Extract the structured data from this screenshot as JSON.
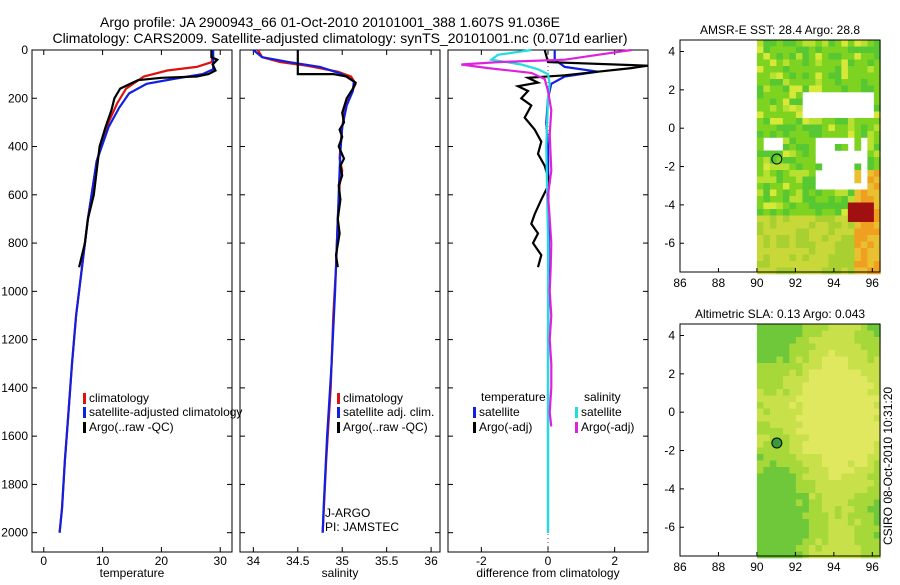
{
  "header": {
    "line1": "Argo profile: JA 2900943_66 01-Oct-2010 20101001_388 1.607S 91.036E",
    "line2": "Climatology: CARS2009. Satellite-adjusted climatology: synTS_20101001.nc (0.071d earlier)"
  },
  "colors": {
    "climatology": "#dd1111",
    "satellite": "#1020e0",
    "argo": "#000000",
    "salinity_sat": "#22dddd",
    "salinity_argo": "#dd22dd"
  },
  "depth_ticks": [
    "0",
    "200",
    "400",
    "600",
    "800",
    "1000",
    "1200",
    "1400",
    "1600",
    "1800",
    "2000"
  ],
  "chart_data": [
    {
      "id": "temperature",
      "type": "line",
      "xlabel": "temperature",
      "ylabel": "",
      "xlim": [
        -2,
        32
      ],
      "ylim": [
        2080,
        0
      ],
      "xticks": [
        {
          "v": 0,
          "label": "0"
        },
        {
          "v": 10,
          "label": "10"
        },
        {
          "v": 20,
          "label": "20"
        },
        {
          "v": 30,
          "label": "30"
        }
      ],
      "legend": [
        "climatology",
        "satellite-adjusted climatology",
        "Argo(..raw -QC)"
      ],
      "series": [
        {
          "name": "climatology",
          "color": "#dd1111",
          "points": [
            [
              28.6,
              0
            ],
            [
              28.6,
              50
            ],
            [
              26,
              70
            ],
            [
              21,
              85
            ],
            [
              17,
              110
            ],
            [
              14,
              160
            ],
            [
              12.5,
              220
            ],
            [
              11,
              300
            ],
            [
              9,
              460
            ],
            [
              7.5,
              700
            ],
            [
              6.5,
              900
            ],
            [
              5.5,
              1100
            ],
            [
              4.8,
              1300
            ],
            [
              4.2,
              1500
            ],
            [
              3.6,
              1700
            ],
            [
              3.1,
              1900
            ],
            [
              2.7,
              2000
            ]
          ]
        },
        {
          "name": "satellite",
          "color": "#1020e0",
          "points": [
            [
              28.8,
              0
            ],
            [
              28.8,
              80
            ],
            [
              27,
              100
            ],
            [
              22,
              120
            ],
            [
              17.5,
              140
            ],
            [
              14.5,
              180
            ],
            [
              12.8,
              240
            ],
            [
              11,
              320
            ],
            [
              9,
              460
            ],
            [
              7.5,
              700
            ],
            [
              6.5,
              900
            ],
            [
              5.5,
              1100
            ],
            [
              4.8,
              1300
            ],
            [
              4.2,
              1500
            ],
            [
              3.6,
              1700
            ],
            [
              3.1,
              1900
            ],
            [
              2.7,
              2000
            ]
          ]
        },
        {
          "name": "Argo",
          "color": "#000000",
          "points": [
            [
              28.5,
              0
            ],
            [
              28.5,
              30
            ],
            [
              29.5,
              40
            ],
            [
              28.7,
              60
            ],
            [
              29.2,
              85
            ],
            [
              28,
              100
            ],
            [
              26,
              110
            ],
            [
              20,
              115
            ],
            [
              16,
              125
            ],
            [
              13,
              160
            ],
            [
              12,
              200
            ],
            [
              11.5,
              250
            ],
            [
              10.5,
              320
            ],
            [
              9.5,
              400
            ],
            [
              9,
              500
            ],
            [
              8.5,
              600
            ],
            [
              7.5,
              700
            ],
            [
              7,
              800
            ],
            [
              6,
              900
            ]
          ]
        }
      ]
    },
    {
      "id": "salinity",
      "type": "line",
      "xlabel": "salinity",
      "xlim": [
        33.85,
        36.1
      ],
      "ylim": [
        2080,
        0
      ],
      "xticks": [
        {
          "v": 34,
          "label": "34"
        },
        {
          "v": 34.5,
          "label": "34.5"
        },
        {
          "v": 35,
          "label": "35"
        },
        {
          "v": 35.5,
          "label": "35.5"
        },
        {
          "v": 36,
          "label": "36"
        }
      ],
      "legend": [
        "climatology",
        "satellite adj. clim.",
        "Argo(..raw -QC)"
      ],
      "annotation": [
        "J-ARGO",
        "PI: JAMSTEC"
      ],
      "series": [
        {
          "name": "climatology",
          "color": "#dd1111",
          "points": [
            [
              34.05,
              0
            ],
            [
              34.1,
              30
            ],
            [
              34.3,
              50
            ],
            [
              34.6,
              65
            ],
            [
              34.95,
              90
            ],
            [
              35.1,
              110
            ],
            [
              35.15,
              140
            ],
            [
              35.1,
              180
            ],
            [
              35.03,
              240
            ],
            [
              35.0,
              320
            ],
            [
              34.98,
              400
            ],
            [
              34.97,
              450
            ],
            [
              35.0,
              500
            ],
            [
              34.97,
              560
            ],
            [
              34.95,
              700
            ],
            [
              34.93,
              900
            ],
            [
              34.9,
              1100
            ],
            [
              34.87,
              1400
            ],
            [
              34.82,
              1700
            ],
            [
              34.78,
              2000
            ]
          ]
        },
        {
          "name": "satellite",
          "color": "#1020e0",
          "points": [
            [
              34.0,
              0
            ],
            [
              34.1,
              30
            ],
            [
              34.4,
              50
            ],
            [
              34.75,
              70
            ],
            [
              35.0,
              100
            ],
            [
              35.13,
              130
            ],
            [
              35.12,
              170
            ],
            [
              35.05,
              230
            ],
            [
              35.0,
              320
            ],
            [
              34.98,
              420
            ],
            [
              34.97,
              500
            ],
            [
              34.96,
              600
            ],
            [
              34.94,
              800
            ],
            [
              34.92,
              1000
            ],
            [
              34.88,
              1300
            ],
            [
              34.83,
              1600
            ],
            [
              34.79,
              1900
            ],
            [
              34.78,
              2000
            ]
          ]
        },
        {
          "name": "Argo",
          "color": "#000000",
          "points": [
            [
              34.5,
              0
            ],
            [
              34.5,
              90
            ],
            [
              34.5,
              100
            ],
            [
              34.9,
              100
            ],
            [
              35.05,
              110
            ],
            [
              35.15,
              135
            ],
            [
              35.12,
              160
            ],
            [
              35.05,
              200
            ],
            [
              35.0,
              260
            ],
            [
              35.02,
              300
            ],
            [
              34.97,
              330
            ],
            [
              35.0,
              360
            ],
            [
              34.96,
              400
            ],
            [
              35.02,
              450
            ],
            [
              34.98,
              480
            ],
            [
              35.0,
              520
            ],
            [
              34.96,
              560
            ],
            [
              34.98,
              620
            ],
            [
              34.95,
              700
            ],
            [
              34.97,
              760
            ],
            [
              34.93,
              850
            ],
            [
              34.95,
              900
            ]
          ]
        }
      ]
    },
    {
      "id": "difference",
      "type": "line",
      "xlabel": "difference from climatology",
      "xlim": [
        -3,
        3
      ],
      "ylim": [
        2080,
        0
      ],
      "xticks": [
        {
          "v": -2,
          "label": "-2"
        },
        {
          "v": 0,
          "label": "0"
        },
        {
          "v": 2,
          "label": "2"
        }
      ],
      "legend_headers": [
        "temperature",
        "salinity"
      ],
      "legend": [
        "satellite",
        "Argo(-adj)",
        "satellite",
        "Argo(-adj)"
      ],
      "series": [
        {
          "name": "temperature satellite",
          "color": "#1020e0",
          "points": [
            [
              0.2,
              0
            ],
            [
              0.2,
              40
            ],
            [
              0.5,
              70
            ],
            [
              1.5,
              90
            ],
            [
              0.5,
              110
            ],
            [
              0.1,
              140
            ],
            [
              0.0,
              200
            ],
            [
              -0.05,
              300
            ],
            [
              0.0,
              400
            ],
            [
              0.02,
              800
            ],
            [
              0.0,
              1200
            ],
            [
              0.0,
              2000
            ]
          ]
        },
        {
          "name": "temperature Argo",
          "color": "#000000",
          "points": [
            [
              -0.1,
              0
            ],
            [
              0,
              50
            ],
            [
              3,
              65
            ],
            [
              2.5,
              75
            ],
            [
              1.5,
              90
            ],
            [
              0.5,
              105
            ],
            [
              -0.6,
              115
            ],
            [
              -0.3,
              135
            ],
            [
              -0.9,
              150
            ],
            [
              -0.6,
              170
            ],
            [
              -0.8,
              200
            ],
            [
              -0.5,
              230
            ],
            [
              -0.7,
              280
            ],
            [
              -0.4,
              330
            ],
            [
              -0.2,
              380
            ],
            [
              -0.3,
              430
            ],
            [
              -0.1,
              480
            ],
            [
              0.05,
              550
            ],
            [
              -0.2,
              620
            ],
            [
              -0.4,
              680
            ],
            [
              -0.5,
              720
            ],
            [
              -0.3,
              760
            ],
            [
              -0.45,
              800
            ],
            [
              -0.2,
              850
            ],
            [
              -0.3,
              900
            ]
          ]
        },
        {
          "name": "salinity satellite",
          "color": "#22dddd",
          "points": [
            [
              -0.5,
              0
            ],
            [
              -1.5,
              20
            ],
            [
              -1.7,
              40
            ],
            [
              -0.8,
              60
            ],
            [
              -0.3,
              80
            ],
            [
              0,
              100
            ],
            [
              0.05,
              140
            ],
            [
              0,
              200
            ],
            [
              -0.05,
              400
            ],
            [
              0,
              800
            ],
            [
              0,
              1200
            ],
            [
              0,
              2000
            ]
          ]
        },
        {
          "name": "salinity Argo",
          "color": "#dd22dd",
          "points": [
            [
              2.5,
              0
            ],
            [
              1.5,
              20
            ],
            [
              0.5,
              40
            ],
            [
              -1.5,
              50
            ],
            [
              -2.6,
              60
            ],
            [
              -1.8,
              75
            ],
            [
              -0.5,
              95
            ],
            [
              -0.1,
              120
            ],
            [
              0,
              170
            ],
            [
              0.1,
              250
            ],
            [
              0.05,
              350
            ],
            [
              0.1,
              500
            ],
            [
              0.0,
              600
            ],
            [
              0.05,
              700
            ],
            [
              0.1,
              800
            ],
            [
              0.08,
              900
            ],
            [
              0.05,
              1000
            ],
            [
              0.1,
              1100
            ],
            [
              0.05,
              1200
            ],
            [
              0.1,
              1300
            ],
            [
              0.1,
              1400
            ],
            [
              0.05,
              1500
            ],
            [
              0.1,
              1560
            ]
          ]
        }
      ]
    },
    {
      "id": "sst_map",
      "type": "heatmap",
      "title": "AMSR-E SST: 28.4 Argo: 28.8",
      "xlim": [
        86,
        96.4
      ],
      "ylim": [
        -7.5,
        4.6
      ],
      "xticks": [
        {
          "v": 86,
          "label": "86"
        },
        {
          "v": 88,
          "label": "88"
        },
        {
          "v": 90,
          "label": "90"
        },
        {
          "v": 92,
          "label": "92"
        },
        {
          "v": 94,
          "label": "94"
        },
        {
          "v": 96,
          "label": "96"
        }
      ],
      "yticks": [
        {
          "v": 4,
          "label": "4"
        },
        {
          "v": 2,
          "label": "2"
        },
        {
          "v": 0,
          "label": "0"
        },
        {
          "v": -2,
          "label": "-2"
        },
        {
          "v": -4,
          "label": "-4"
        },
        {
          "v": -6,
          "label": "-6"
        }
      ],
      "data_lon_min": 90,
      "float": {
        "lon": 91.036,
        "lat": -1.607
      }
    },
    {
      "id": "sla_map",
      "type": "heatmap",
      "title": "Altimetric SLA: 0.13 Argo: 0.043",
      "xlim": [
        86,
        96.4
      ],
      "ylim": [
        -7.5,
        4.6
      ],
      "xticks": [
        {
          "v": 86,
          "label": "86"
        },
        {
          "v": 88,
          "label": "88"
        },
        {
          "v": 90,
          "label": "90"
        },
        {
          "v": 92,
          "label": "92"
        },
        {
          "v": 94,
          "label": "94"
        },
        {
          "v": 96,
          "label": "96"
        }
      ],
      "yticks": [
        {
          "v": 4,
          "label": "4"
        },
        {
          "v": 2,
          "label": "2"
        },
        {
          "v": 0,
          "label": "0"
        },
        {
          "v": -2,
          "label": "-2"
        },
        {
          "v": -4,
          "label": "-4"
        },
        {
          "v": -6,
          "label": "-6"
        }
      ],
      "data_lon_min": 90,
      "float": {
        "lon": 91.036,
        "lat": -1.607
      }
    }
  ],
  "side_label": "CSIRO 08-Oct-2010 10:31:20"
}
